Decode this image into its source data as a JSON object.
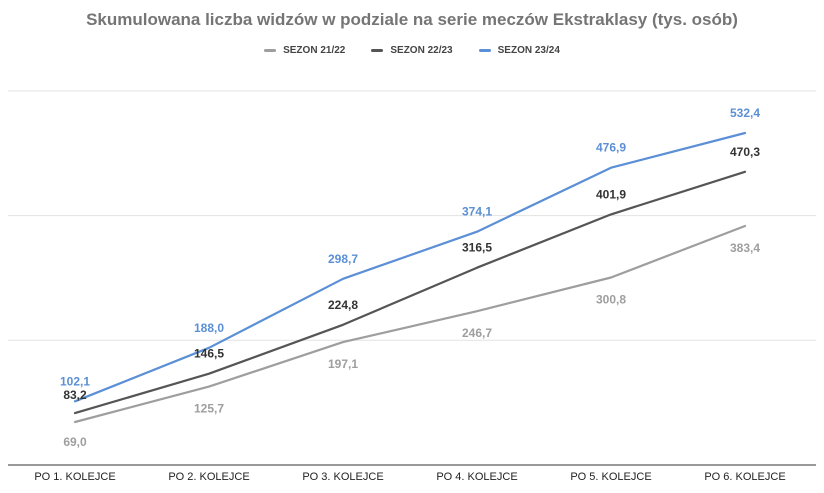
{
  "chart_data": {
    "type": "line",
    "title": "Skumulowana liczba widzów w podziale na serie meczów Ekstraklasy (tys. osób)",
    "categories": [
      "PO 1. KOLEJCE",
      "PO 2. KOLEJCE",
      "PO 3. KOLEJCE",
      "PO 4. KOLEJCE",
      "PO 5. KOLEJCE",
      "PO 6. KOLEJCE"
    ],
    "series": [
      {
        "name": "SEZON 21/22",
        "color": "#9e9e9e",
        "values": [
          69.0,
          125.7,
          197.1,
          246.7,
          300.8,
          383.4
        ],
        "labels": [
          "69,0",
          "125,7",
          "197,1",
          "246,7",
          "300,8",
          "383,4"
        ]
      },
      {
        "name": "SEZON 22/23",
        "color": "#555555",
        "values": [
          83.2,
          146.5,
          224.8,
          316.5,
          401.9,
          470.3
        ],
        "labels": [
          "83,2",
          "146,5",
          "224,8",
          "316,5",
          "401,9",
          "470,3"
        ]
      },
      {
        "name": "SEZON 23/24",
        "color": "#5b8fd6",
        "values": [
          102.1,
          188.0,
          298.7,
          374.1,
          476.9,
          532.4
        ],
        "labels": [
          "102,1",
          "188,0",
          "298,7",
          "374,1",
          "476,9",
          "532,4"
        ]
      }
    ],
    "ylim": [
      0,
      600
    ],
    "gridlines": [
      200,
      400,
      600
    ],
    "legend_position": "top-center",
    "grid": true
  }
}
